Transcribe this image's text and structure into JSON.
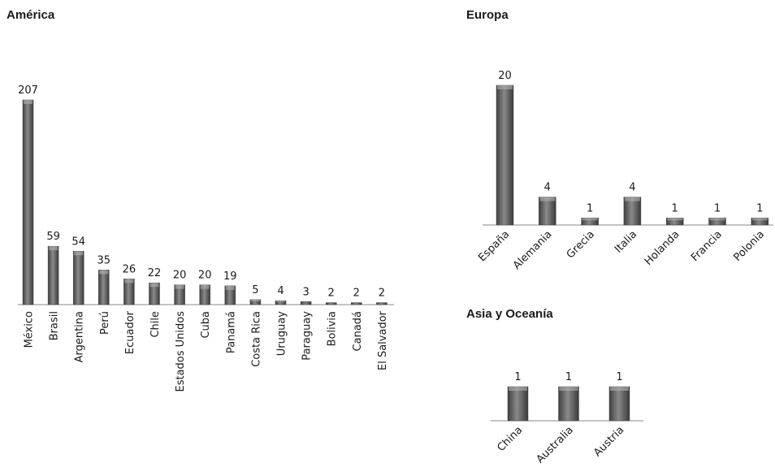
{
  "chart_data": [
    {
      "type": "bar",
      "title": "América",
      "categories": [
        "México",
        "Brasil",
        "Argentina",
        "Perú",
        "Ecuador",
        "Chile",
        "Estados Unidos",
        "Cuba",
        "Panamá",
        "Costa Rica",
        "Uruguay",
        "Paraguay",
        "Bolivia",
        "Canadá",
        "El Salvador"
      ],
      "values": [
        207,
        59,
        54,
        35,
        26,
        22,
        20,
        20,
        19,
        5,
        4,
        3,
        2,
        2,
        2
      ],
      "data_labels": [
        "207",
        "59",
        "54",
        "35",
        "26",
        "22",
        "20",
        "20",
        "19",
        "5",
        "4",
        "3",
        "2",
        "2",
        "2"
      ],
      "xlabel": "",
      "ylabel": "",
      "grid": false,
      "legend": "none",
      "tick_label_rotation": "vertical",
      "bar_color": "#6e6e6e"
    },
    {
      "type": "bar",
      "title": "Europa",
      "categories": [
        "España",
        "Alemania",
        "Grecia",
        "Italia",
        "Holanda",
        "Francia",
        "Polonia"
      ],
      "values": [
        20,
        4,
        1,
        4,
        1,
        1,
        1
      ],
      "data_labels": [
        "20",
        "4",
        "1",
        "4",
        "1",
        "1",
        "1"
      ],
      "xlabel": "",
      "ylabel": "",
      "grid": false,
      "legend": "none",
      "tick_label_rotation": "diagonal",
      "bar_color": "#6e6e6e"
    },
    {
      "type": "bar",
      "title": "Asia y Oceanía",
      "categories": [
        "China",
        "Australia",
        "Austria"
      ],
      "values": [
        1,
        1,
        1
      ],
      "data_labels": [
        "1",
        "1",
        "1"
      ],
      "xlabel": "",
      "ylabel": "",
      "grid": false,
      "legend": "none",
      "tick_label_rotation": "diagonal",
      "bar_color": "#6e6e6e"
    }
  ]
}
